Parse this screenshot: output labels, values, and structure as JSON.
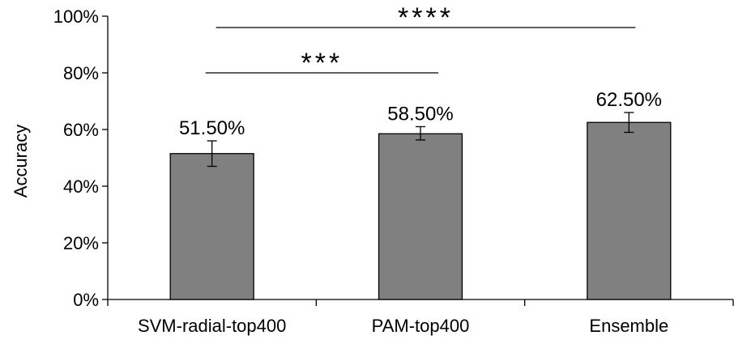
{
  "chart_data": {
    "type": "bar",
    "categories": [
      "SVM-radial-top400",
      "PAM-top400",
      "Ensemble"
    ],
    "values": [
      51.5,
      58.5,
      62.5
    ],
    "value_labels": [
      "51.50%",
      "58.50%",
      "62.50%"
    ],
    "error_bars": [
      {
        "low": 47.0,
        "high": 56.0
      },
      {
        "low": 56.3,
        "high": 61.0
      },
      {
        "low": 59.0,
        "high": 66.0
      }
    ],
    "ylabel": "Accuracy",
    "ylim": [
      0,
      100
    ],
    "yticks": [
      0,
      20,
      40,
      60,
      80,
      100
    ],
    "ytick_labels": [
      "0%",
      "20%",
      "40%",
      "60%",
      "80%",
      "100%"
    ],
    "grid": false,
    "bar_color": "#808080",
    "significance": [
      {
        "from": 0,
        "to": 1,
        "label": "***",
        "y": 80
      },
      {
        "from": 0,
        "to": 2,
        "label": "****",
        "y": 96
      }
    ]
  }
}
